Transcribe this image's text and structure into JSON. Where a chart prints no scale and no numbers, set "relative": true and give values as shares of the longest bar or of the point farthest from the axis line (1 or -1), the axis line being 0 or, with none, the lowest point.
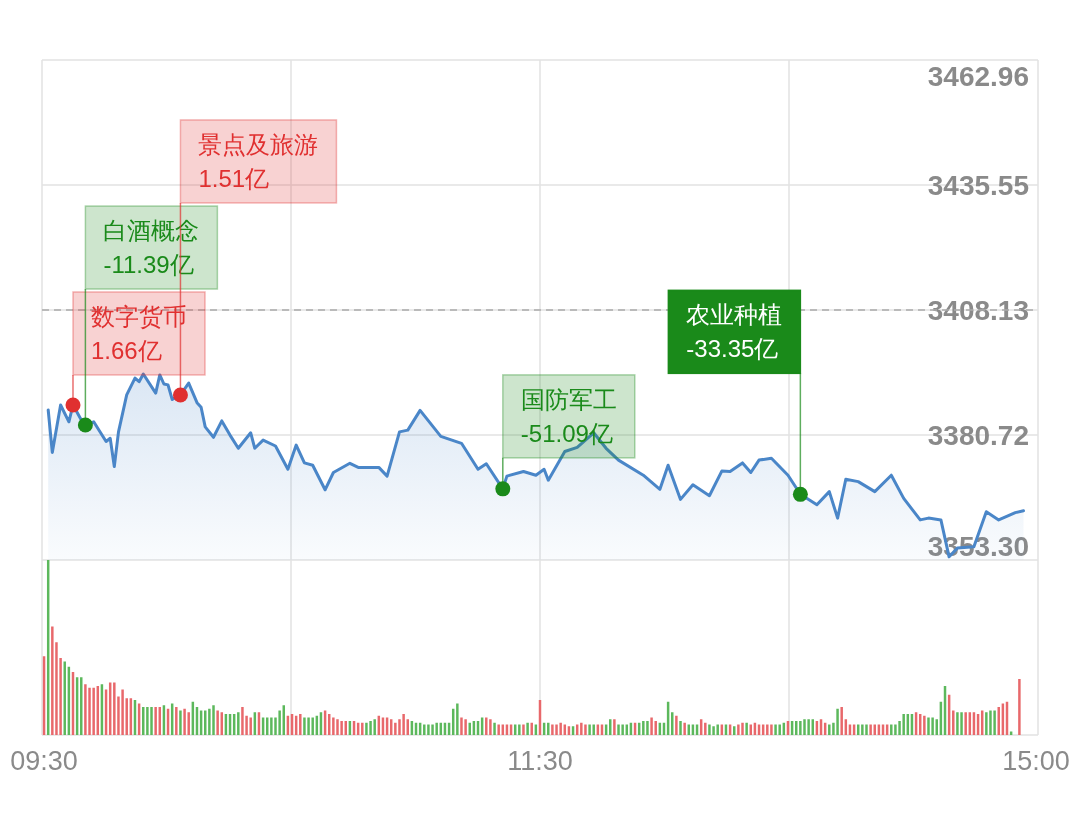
{
  "chart_data": [
    {
      "type": "area",
      "categories": [
        null,
        null,
        null,
        null,
        null,
        null,
        null,
        null,
        null,
        null,
        null,
        null,
        null,
        null,
        null,
        null,
        null,
        null,
        null,
        null,
        null,
        null,
        null,
        null,
        null,
        null,
        null,
        null,
        null,
        null,
        null,
        null,
        null,
        null,
        null,
        null,
        null,
        null,
        null,
        null,
        null,
        null,
        null,
        null,
        null,
        null,
        null,
        null,
        null,
        null,
        null,
        null,
        null,
        null,
        null,
        null,
        null,
        null,
        null,
        null,
        null,
        null,
        null,
        null,
        null,
        null,
        null,
        null,
        null,
        null,
        null,
        null,
        null,
        null,
        null,
        null,
        null,
        null,
        null,
        null,
        null,
        null,
        null,
        null,
        null,
        null,
        null,
        null,
        null,
        null,
        null,
        null,
        null,
        null,
        null,
        null,
        null,
        null,
        null,
        null,
        null,
        null,
        null,
        null,
        null,
        null,
        null,
        null,
        null,
        null,
        null,
        null,
        null,
        null,
        null,
        null,
        null,
        null,
        null,
        null,
        null,
        null,
        null,
        null,
        null,
        null,
        null,
        null,
        null,
        null,
        null,
        null,
        null,
        null,
        null,
        null,
        null,
        null,
        null,
        null,
        null,
        null,
        null,
        null,
        null,
        null,
        null,
        null,
        null,
        null,
        null,
        null,
        null,
        null,
        null,
        null,
        null,
        null,
        null,
        null,
        null,
        null,
        null,
        null,
        null,
        null,
        null,
        null,
        null,
        null,
        null,
        null,
        null,
        null,
        null,
        null,
        null,
        null,
        null,
        null,
        null,
        null,
        null,
        null,
        null,
        null,
        null,
        null,
        null,
        null,
        null,
        null,
        null,
        null,
        null,
        null,
        null,
        null,
        null,
        null,
        null,
        null,
        null,
        null,
        null,
        null,
        null,
        null,
        null,
        null,
        null,
        null,
        null,
        null,
        null,
        null,
        null,
        null,
        null,
        null,
        null,
        null,
        null,
        null,
        null,
        null,
        null,
        null,
        null,
        null,
        null,
        null,
        null,
        null,
        null,
        null,
        null,
        null,
        null,
        null,
        null
      ],
      "ylim": [
        3353.3,
        3462.96
      ],
      "yticks": [
        {
          "value": 3353.3,
          "label": "3353.30"
        },
        3380.72,
        3408.13,
        3435.55,
        3462.96
      ],
      "grid": true,
      "tick_labels": "y",
      "ref_lines": [
        {
          "axis": "y",
          "value": 3408.13,
          "line_style": "dashed",
          "color": "#aaaaaa"
        }
      ],
      "series": [
        {
          "color": "#4a86c8",
          "values": [
            null,
            3386.2,
            3376.9,
            null,
            3387.3,
            null,
            3383.6,
            3387.3,
            null,
            3384.0,
            3382.9,
            null,
            3383.6,
            null,
            null,
            3379.3,
            3380.0,
            3373.8,
            3381.4,
            null,
            3389.5,
            null,
            3393.2,
            3392.4,
            3394.1,
            null,
            null,
            3389.9,
            3393.9,
            3391.9,
            3391.7,
            3388.5,
            null,
            3389.5,
            null,
            3392.1,
            null,
            3387.8,
            3386.8,
            3382.5,
            null,
            3380.2,
            null,
            3383.8,
            null,
            3380.7,
            null,
            3377.8,
            null,
            null,
            3381.2,
            3377.8,
            null,
            3379.6,
            null,
            null,
            3378.3,
            null,
            null,
            3373.2,
            null,
            3378.5,
            null,
            3374.6,
            null,
            3374.1,
            null,
            null,
            3368.7,
            null,
            3372.5,
            null,
            null,
            null,
            3374.5,
            null,
            3373.6,
            null,
            null,
            null,
            null,
            3373.6,
            null,
            3371.7,
            null,
            null,
            3381.4,
            null,
            3381.8,
            null,
            null,
            3386.1,
            null,
            null,
            null,
            null,
            3380.4,
            null,
            null,
            null,
            null,
            3378.9,
            null,
            null,
            null,
            3373.2,
            null,
            3374.4,
            null,
            null,
            null,
            3368.9,
            3371.7,
            null,
            null,
            null,
            3372.7,
            null,
            null,
            3371.9,
            null,
            3373.2,
            3370.8,
            null,
            null,
            null,
            3377.1,
            null,
            null,
            3378.0,
            null,
            null,
            null,
            3381.2,
            null,
            null,
            3377.8,
            null,
            null,
            3375.2,
            null,
            null,
            null,
            null,
            null,
            3371.9,
            null,
            null,
            null,
            3368.8,
            null,
            3374.1,
            null,
            null,
            3366.6,
            null,
            null,
            3369.8,
            null,
            null,
            null,
            3367.4,
            null,
            null,
            3372.8,
            null,
            3372.7,
            null,
            null,
            3374.6,
            null,
            3372.5,
            null,
            3375.2,
            null,
            null,
            3375.6,
            null,
            null,
            null,
            3371.9,
            null,
            null,
            3367.7,
            null,
            null,
            null,
            3365.4,
            null,
            null,
            3368.3,
            null,
            3362.5,
            null,
            3371.0,
            null,
            null,
            3370.5,
            null,
            null,
            null,
            3368.3,
            null,
            null,
            null,
            3371.9,
            null,
            null,
            3366.8,
            null,
            null,
            null,
            3362.1,
            null,
            3362.5,
            null,
            null,
            3362.1,
            null,
            3354.0,
            null,
            3355.9,
            null,
            null,
            null,
            3356.2,
            null,
            null,
            3363.9,
            null,
            null,
            3362.1,
            null,
            null,
            null,
            3363.7,
            null,
            3364.1,
            null,
            null,
            null
          ]
        },
        {
          "type": "scatter",
          "marker": "circle",
          "color": "#e03030",
          "values": [
            null,
            null,
            null,
            null,
            null,
            null,
            null,
            3387.3,
            null,
            null,
            null,
            null,
            null,
            null,
            null,
            null,
            null,
            null,
            null,
            null,
            null,
            null,
            null,
            null,
            null,
            null,
            null,
            null,
            null,
            null,
            null,
            null,
            null,
            3389.5,
            null,
            null,
            null,
            null,
            null,
            null,
            null,
            null,
            null,
            null,
            null,
            null,
            null,
            null,
            null,
            null,
            null,
            null,
            null,
            null,
            null,
            null,
            null,
            null,
            null,
            null,
            null,
            null,
            null,
            null,
            null,
            null,
            null,
            null,
            null,
            null,
            null,
            null,
            null,
            null,
            null,
            null,
            null,
            null,
            null,
            null,
            null,
            null,
            null,
            null,
            null,
            null,
            null,
            null,
            null,
            null,
            null,
            null,
            null,
            null,
            null,
            null,
            null,
            null,
            null,
            null,
            null,
            null,
            null,
            null,
            null,
            null,
            null,
            null,
            null,
            null,
            null,
            null,
            null,
            null,
            null,
            null,
            null,
            null,
            null,
            null,
            null,
            null,
            null,
            null,
            null,
            null,
            null,
            null,
            null,
            null,
            null,
            null,
            null,
            null,
            null,
            null,
            null,
            null,
            null,
            null,
            null,
            null,
            null,
            null,
            null,
            null,
            null,
            null,
            null,
            null,
            null,
            null,
            null,
            null,
            null,
            null,
            null,
            null,
            null,
            null,
            null,
            null,
            null,
            null,
            null,
            null,
            null,
            null,
            null,
            null,
            null,
            null,
            null,
            null,
            null,
            null,
            null,
            null,
            null,
            null,
            null,
            null,
            null,
            null,
            null,
            null,
            null,
            null,
            null,
            null,
            null,
            null,
            null,
            null,
            null,
            null,
            null,
            null,
            null,
            null,
            null,
            null,
            null,
            null,
            null,
            null,
            null,
            null,
            null,
            null,
            null,
            null,
            null,
            null,
            null,
            null,
            null,
            null,
            null,
            null,
            null,
            null,
            null,
            null,
            null,
            null,
            null,
            null,
            null,
            null,
            null,
            null,
            null,
            null,
            null,
            null,
            null,
            null,
            null,
            null,
            null
          ]
        },
        {
          "type": "scatter",
          "marker": "circle",
          "color": "#1a8a1a",
          "values": [
            null,
            null,
            null,
            null,
            null,
            null,
            null,
            null,
            null,
            null,
            3382.9,
            null,
            null,
            null,
            null,
            null,
            null,
            null,
            null,
            null,
            null,
            null,
            null,
            null,
            null,
            null,
            null,
            null,
            null,
            null,
            null,
            null,
            null,
            null,
            null,
            null,
            null,
            null,
            null,
            null,
            null,
            null,
            null,
            null,
            null,
            null,
            null,
            null,
            null,
            null,
            null,
            null,
            null,
            null,
            null,
            null,
            null,
            null,
            null,
            null,
            null,
            null,
            null,
            null,
            null,
            null,
            null,
            null,
            null,
            null,
            null,
            null,
            null,
            null,
            null,
            null,
            null,
            null,
            null,
            null,
            null,
            null,
            null,
            null,
            null,
            null,
            null,
            null,
            null,
            null,
            null,
            null,
            null,
            null,
            null,
            null,
            null,
            null,
            null,
            null,
            null,
            null,
            null,
            null,
            null,
            null,
            null,
            null,
            null,
            null,
            null,
            3368.9,
            null,
            null,
            null,
            null,
            null,
            null,
            null,
            null,
            null,
            null,
            null,
            null,
            null,
            null,
            null,
            null,
            null,
            null,
            null,
            null,
            null,
            null,
            null,
            null,
            null,
            null,
            null,
            null,
            null,
            null,
            null,
            null,
            null,
            null,
            null,
            null,
            null,
            null,
            null,
            null,
            null,
            null,
            null,
            null,
            null,
            null,
            null,
            null,
            null,
            null,
            null,
            null,
            null,
            null,
            null,
            null,
            null,
            null,
            null,
            null,
            null,
            null,
            null,
            null,
            null,
            null,
            null,
            null,
            null,
            null,
            null,
            3367.7,
            null,
            null,
            null,
            null,
            null,
            null,
            null,
            null,
            null,
            null,
            null,
            null,
            null,
            null,
            null,
            null,
            null,
            null,
            null,
            null,
            null,
            null,
            null,
            null,
            null,
            null,
            null,
            null,
            null,
            null,
            null,
            null,
            null,
            null,
            null,
            null,
            null,
            null,
            null,
            null,
            null,
            null,
            null,
            null,
            null,
            null,
            null,
            null,
            null,
            null,
            null,
            null,
            null,
            null,
            null,
            null,
            null
          ]
        }
      ],
      "annotations": [
        "数字货币\n1.66亿",
        "白酒概念\n-11.39亿",
        "景点及旅游\n1.51亿",
        "国防军工\n-51.09亿",
        "农业种植\n-33.35亿"
      ]
    },
    {
      "type": "bar",
      "relative": true,
      "categories": [
        "09:30",
        null,
        null,
        null,
        null,
        null,
        null,
        null,
        null,
        null,
        null,
        null,
        null,
        null,
        null,
        null,
        null,
        null,
        null,
        null,
        null,
        null,
        null,
        null,
        null,
        null,
        null,
        null,
        null,
        null,
        null,
        null,
        null,
        null,
        null,
        null,
        null,
        null,
        null,
        null,
        null,
        null,
        null,
        null,
        null,
        null,
        null,
        null,
        null,
        null,
        null,
        null,
        null,
        null,
        null,
        null,
        null,
        null,
        null,
        null,
        null,
        null,
        null,
        null,
        null,
        null,
        null,
        null,
        null,
        null,
        null,
        null,
        null,
        null,
        null,
        null,
        null,
        null,
        null,
        null,
        null,
        null,
        null,
        null,
        null,
        null,
        null,
        null,
        null,
        null,
        null,
        null,
        null,
        null,
        null,
        null,
        null,
        null,
        null,
        null,
        null,
        null,
        null,
        null,
        null,
        null,
        null,
        null,
        null,
        null,
        null,
        null,
        null,
        null,
        null,
        null,
        null,
        null,
        null,
        null,
        "11:30",
        null,
        null,
        null,
        null,
        null,
        null,
        null,
        null,
        null,
        null,
        null,
        null,
        null,
        null,
        null,
        null,
        null,
        null,
        null,
        null,
        null,
        null,
        null,
        null,
        null,
        null,
        null,
        null,
        null,
        null,
        null,
        null,
        null,
        null,
        null,
        null,
        null,
        null,
        null,
        null,
        null,
        null,
        null,
        null,
        null,
        null,
        null,
        null,
        null,
        null,
        null,
        null,
        null,
        null,
        null,
        null,
        null,
        null,
        null,
        null,
        null,
        null,
        null,
        null,
        null,
        null,
        null,
        null,
        null,
        null,
        null,
        null,
        null,
        null,
        null,
        null,
        null,
        null,
        null,
        null,
        null,
        null,
        null,
        null,
        null,
        null,
        null,
        null,
        null,
        null,
        null,
        null,
        null,
        null,
        null,
        null,
        null,
        null,
        null,
        null,
        null,
        null,
        null,
        null,
        null,
        null,
        null,
        null,
        null,
        null,
        null,
        null,
        null,
        null,
        null,
        null,
        null,
        null,
        null,
        "15:00"
      ],
      "grid": "x",
      "tick_labels": "x",
      "values": [
        0.45,
        1,
        0.62,
        0.53,
        0.44,
        0.42,
        0.39,
        0.36,
        0.33,
        0.33,
        0.29,
        0.27,
        0.27,
        0.28,
        0.29,
        0.26,
        0.3,
        0.3,
        0.22,
        0.26,
        0.21,
        0.21,
        0.2,
        0.18,
        0.16,
        0.16,
        0.16,
        0.16,
        0.16,
        0.17,
        0.15,
        0.18,
        0.16,
        0.14,
        0.15,
        0.13,
        0.19,
        0.16,
        0.14,
        0.14,
        0.15,
        0.17,
        0.14,
        0.13,
        0.12,
        0.12,
        0.12,
        0.13,
        0.16,
        0.11,
        0.1,
        0.13,
        0.13,
        0.1,
        0.1,
        0.1,
        0.1,
        0.14,
        0.17,
        0.11,
        0.12,
        0.11,
        0.12,
        0.1,
        0.1,
        0.1,
        0.11,
        0.13,
        0.14,
        0.12,
        0.1,
        0.09,
        0.08,
        0.08,
        0.08,
        0.08,
        0.07,
        0.07,
        0.07,
        0.08,
        0.09,
        0.11,
        0.1,
        0.1,
        0.09,
        0.07,
        0.09,
        0.12,
        0.09,
        0.08,
        0.07,
        0.07,
        0.06,
        0.06,
        0.06,
        0.07,
        0.07,
        0.07,
        0.07,
        0.15,
        0.18,
        0.1,
        0.09,
        0.07,
        0.08,
        0.08,
        0.1,
        0.1,
        0.09,
        0.07,
        0.06,
        0.06,
        0.06,
        0.06,
        0.06,
        0.06,
        0.06,
        0.07,
        0.07,
        0.06,
        0.2,
        0.07,
        0.07,
        0.06,
        0.06,
        0.07,
        0.06,
        0.05,
        0.05,
        0.06,
        0.07,
        0.06,
        0.06,
        0.06,
        0.06,
        0.06,
        0.06,
        0.09,
        0.09,
        0.06,
        0.06,
        0.06,
        0.07,
        0.07,
        0.07,
        0.08,
        0.08,
        0.1,
        0.08,
        0.07,
        0.07,
        0.19,
        0.13,
        0.11,
        0.08,
        0.07,
        0.06,
        0.06,
        0.06,
        0.09,
        0.07,
        0.06,
        0.05,
        0.06,
        0.06,
        0.06,
        0.06,
        0.05,
        0.06,
        0.07,
        0.07,
        0.06,
        0.07,
        0.06,
        0.06,
        0.06,
        0.06,
        0.06,
        0.06,
        0.07,
        0.08,
        0.08,
        0.08,
        0.08,
        0.09,
        0.09,
        0.09,
        0.08,
        0.09,
        0.07,
        0.06,
        0.07,
        0.15,
        0.16,
        0.09,
        0.06,
        0.06,
        0.06,
        0.06,
        0.06,
        0.06,
        0.06,
        0.06,
        0.06,
        0.06,
        0.06,
        0.06,
        0.08,
        0.12,
        0.12,
        0.12,
        0.13,
        0.12,
        0.11,
        0.1,
        0.1,
        0.09,
        0.19,
        0.28,
        0.23,
        0.14,
        0.13,
        0.13,
        0.13,
        0.13,
        0.13,
        0.12,
        0.14,
        0.13,
        0.14,
        0.14,
        0.16,
        0.18,
        0.19,
        0.02,
        null,
        0.32,
        null,
        null,
        null,
        null
      ],
      "colors": [
        "#e8686b",
        "#5cb85c",
        "#e8686b",
        "#e8686b",
        "#e8686b",
        "#5cb85c",
        "#5cb85c",
        "#e8686b",
        "#5cb85c",
        "#5cb85c",
        "#e8686b",
        "#e8686b",
        "#e8686b",
        "#e8686b",
        "#5cb85c",
        "#e8686b",
        "#e8686b",
        "#e8686b",
        "#e8686b",
        "#e8686b",
        "#e8686b",
        "#e8686b",
        "#5cb85c",
        "#e8686b",
        "#5cb85c",
        "#5cb85c",
        "#5cb85c",
        "#e8686b",
        "#e8686b",
        "#5cb85c",
        "#e8686b",
        "#5cb85c",
        "#e8686b",
        "#5cb85c",
        "#e8686b",
        "#e8686b",
        "#5cb85c",
        "#5cb85c",
        "#5cb85c",
        "#5cb85c",
        "#5cb85c",
        "#5cb85c",
        "#e8686b",
        "#e8686b",
        "#5cb85c",
        "#5cb85c",
        "#5cb85c",
        "#5cb85c",
        "#e8686b",
        "#e8686b",
        "#e8686b",
        "#5cb85c",
        "#e8686b",
        "#5cb85c",
        "#5cb85c",
        "#5cb85c",
        "#5cb85c",
        "#5cb85c",
        "#5cb85c",
        "#e8686b",
        "#e8686b",
        "#e8686b",
        "#e8686b",
        "#5cb85c",
        "#5cb85c",
        "#5cb85c",
        "#5cb85c",
        "#5cb85c",
        "#e8686b",
        "#e8686b",
        "#e8686b",
        "#e8686b",
        "#e8686b",
        "#e8686b",
        "#5cb85c",
        "#e8686b",
        "#e8686b",
        "#e8686b",
        "#5cb85c",
        "#5cb85c",
        "#5cb85c",
        "#e8686b",
        "#e8686b",
        "#e8686b",
        "#e8686b",
        "#e8686b",
        "#e8686b",
        "#e8686b",
        "#e8686b",
        "#5cb85c",
        "#5cb85c",
        "#5cb85c",
        "#5cb85c",
        "#5cb85c",
        "#5cb85c",
        "#5cb85c",
        "#5cb85c",
        "#5cb85c",
        "#5cb85c",
        "#5cb85c",
        "#5cb85c",
        "#e8686b",
        "#e8686b",
        "#5cb85c",
        "#5cb85c",
        "#5cb85c",
        "#5cb85c",
        "#e8686b",
        "#e8686b",
        "#5cb85c",
        "#e8686b",
        "#e8686b",
        "#e8686b",
        "#e8686b",
        "#5cb85c",
        "#5cb85c",
        "#e8686b",
        "#5cb85c",
        "#e8686b",
        "#5cb85c",
        "#e8686b",
        "#5cb85c",
        "#5cb85c",
        "#e8686b",
        "#e8686b",
        "#e8686b",
        "#e8686b",
        "#e8686b",
        "#5cb85c",
        "#e8686b",
        "#e8686b",
        "#e8686b",
        "#5cb85c",
        "#5cb85c",
        "#e8686b",
        "#e8686b",
        "#5cb85c",
        "#5cb85c",
        "#e8686b",
        "#5cb85c",
        "#5cb85c",
        "#5cb85c",
        "#5cb85c",
        "#e8686b",
        "#5cb85c",
        "#5cb85c",
        "#5cb85c",
        "#e8686b",
        "#e8686b",
        "#5cb85c",
        "#5cb85c",
        "#5cb85c",
        "#5cb85c",
        "#e8686b",
        "#5cb85c",
        "#e8686b",
        "#5cb85c",
        "#5cb85c",
        "#5cb85c",
        "#e8686b",
        "#e8686b",
        "#5cb85c",
        "#5cb85c",
        "#5cb85c",
        "#e8686b",
        "#5cb85c",
        "#e8686b",
        "#5cb85c",
        "#e8686b",
        "#e8686b",
        "#5cb85c",
        "#e8686b",
        "#e8686b",
        "#e8686b",
        "#e8686b",
        "#e8686b",
        "#e8686b",
        "#5cb85c",
        "#5cb85c",
        "#5cb85c",
        "#e8686b",
        "#5cb85c",
        "#5cb85c",
        "#5cb85c",
        "#5cb85c",
        "#5cb85c",
        "#5cb85c",
        "#e8686b",
        "#e8686b",
        "#e8686b",
        "#5cb85c",
        "#5cb85c",
        "#5cb85c",
        "#e8686b",
        "#e8686b",
        "#e8686b",
        "#e8686b",
        "#5cb85c",
        "#5cb85c",
        "#5cb85c",
        "#e8686b",
        "#e8686b",
        "#e8686b",
        "#e8686b",
        "#e8686b",
        "#5cb85c",
        "#5cb85c",
        "#5cb85c",
        "#5cb85c",
        "#5cb85c",
        "#5cb85c",
        "#e8686b",
        "#e8686b",
        "#e8686b",
        "#5cb85c",
        "#5cb85c",
        "#5cb85c",
        "#5cb85c",
        "#5cb85c",
        "#e8686b",
        "#e8686b",
        "#5cb85c",
        "#5cb85c",
        "#e8686b",
        "#e8686b",
        "#e8686b",
        "#e8686b",
        "#e8686b",
        "#5cb85c",
        "#5cb85c",
        "#5cb85c",
        "#e8686b",
        "#e8686b",
        "#e8686b",
        "#5cb85c",
        null,
        "#e8686b",
        null,
        null,
        null,
        null
      ]
    }
  ]
}
